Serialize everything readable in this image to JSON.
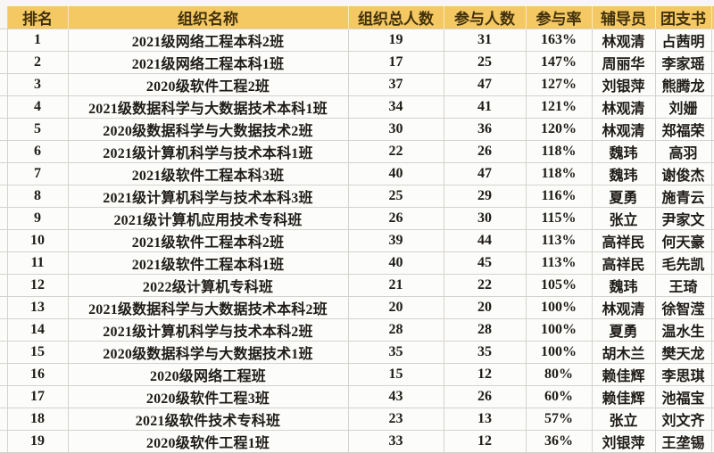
{
  "colors": {
    "header_bg": "#f4c863",
    "header_divider": "#fbe9bb",
    "header_text": "#42310b",
    "grid_line": "#d5d3cf",
    "cell_bg": "#fcfcfa",
    "cell_text": "#1f1c18"
  },
  "table": {
    "columns": [
      {
        "key": "rank",
        "label": "排名"
      },
      {
        "key": "name",
        "label": "组织名称"
      },
      {
        "key": "total",
        "label": "组织总人数"
      },
      {
        "key": "participants",
        "label": "参与人数"
      },
      {
        "key": "rate",
        "label": "参与率"
      },
      {
        "key": "counselor",
        "label": "辅导员"
      },
      {
        "key": "secretary",
        "label": "团支书"
      }
    ],
    "rows": [
      [
        "1",
        "2021级网络工程本科2班",
        "19",
        "31",
        "163%",
        "林观清",
        "占茜明"
      ],
      [
        "2",
        "2021级网络工程本科1班",
        "17",
        "25",
        "147%",
        "周丽华",
        "李家瑶"
      ],
      [
        "3",
        "2020级软件工程2班",
        "37",
        "47",
        "127%",
        "刘银萍",
        "熊腾龙"
      ],
      [
        "4",
        "2021级数据科学与大数据技术本科1班",
        "34",
        "41",
        "121%",
        "林观清",
        "刘姗"
      ],
      [
        "5",
        "2020级数据科学与大数据技术2班",
        "30",
        "36",
        "120%",
        "林观清",
        "郑福荣"
      ],
      [
        "6",
        "2021级计算机科学与技术本科1班",
        "22",
        "26",
        "118%",
        "魏玮",
        "高羽"
      ],
      [
        "7",
        "2021级软件工程本科3班",
        "40",
        "47",
        "118%",
        "魏玮",
        "谢俊杰"
      ],
      [
        "8",
        "2021级计算机科学与技术本科3班",
        "25",
        "29",
        "116%",
        "夏勇",
        "施青云"
      ],
      [
        "9",
        "2021级计算机应用技术专科班",
        "26",
        "30",
        "115%",
        "张立",
        "尹家文"
      ],
      [
        "10",
        "2021级软件工程本科2班",
        "39",
        "44",
        "113%",
        "高祥民",
        "何天豪"
      ],
      [
        "11",
        "2021级软件工程本科1班",
        "40",
        "45",
        "113%",
        "高祥民",
        "毛先凯"
      ],
      [
        "12",
        "2022级计算机专科班",
        "21",
        "22",
        "105%",
        "魏玮",
        "王琦"
      ],
      [
        "13",
        "2021级数据科学与大数据技术本科2班",
        "20",
        "20",
        "100%",
        "林观清",
        "徐智滢"
      ],
      [
        "14",
        "2021级计算机科学与技术本科2班",
        "28",
        "28",
        "100%",
        "夏勇",
        "温水生"
      ],
      [
        "15",
        "2020级数据科学与大数据技术1班",
        "35",
        "35",
        "100%",
        "胡木兰",
        "樊天龙"
      ],
      [
        "16",
        "2020级网络工程班",
        "15",
        "12",
        "80%",
        "赖佳辉",
        "李思琪"
      ],
      [
        "17",
        "2020级软件工程3班",
        "43",
        "26",
        "60%",
        "赖佳辉",
        "池福宝"
      ],
      [
        "18",
        "2021级软件技术专科班",
        "23",
        "13",
        "57%",
        "张立",
        "刘文齐"
      ],
      [
        "19",
        "2020级软件工程1班",
        "33",
        "12",
        "36%",
        "刘银萍",
        "王垄锡"
      ]
    ]
  }
}
